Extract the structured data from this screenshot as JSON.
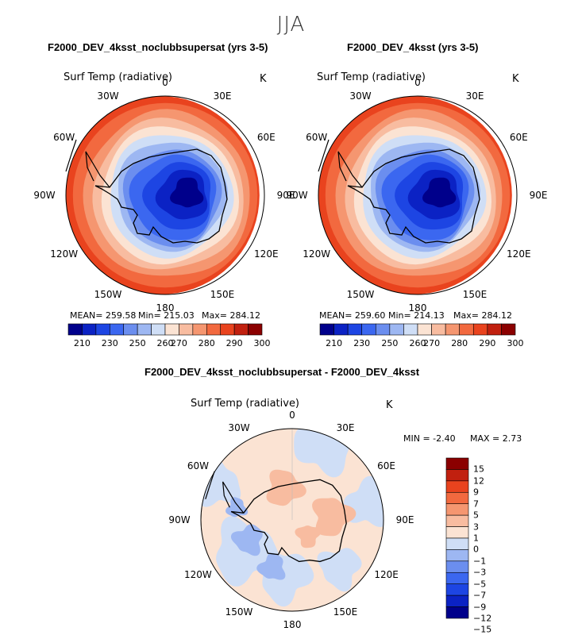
{
  "header": {
    "season": "JJA"
  },
  "colors": {
    "bar": [
      "#00008b",
      "#0b22c4",
      "#1d45e3",
      "#3b67f0",
      "#6b8eef",
      "#9db7f2",
      "#cfdef6",
      "#fbe3d3",
      "#f8bca0",
      "#f59670",
      "#f2693f",
      "#e9431e",
      "#c1200f",
      "#8b0000"
    ],
    "diff": [
      "#00008b",
      "#0b22c4",
      "#1d45e3",
      "#3b67f0",
      "#6b8eef",
      "#9db7f2",
      "#cfdef6",
      "#fbe3d3",
      "#f8bca0",
      "#f59670",
      "#f2693f",
      "#e9431e",
      "#c1200f",
      "#8b0000"
    ],
    "coast": "#000000"
  },
  "panels": [
    {
      "title": "F2000_DEV_4ksst_noclubbsupersat (yrs 3-5)",
      "variable": "Surf Temp (radiative)",
      "units": "K",
      "stats": {
        "mean": "MEAN= 259.58",
        "min": "Min= 215.03",
        "max": "Max= 284.12"
      }
    },
    {
      "title": "F2000_DEV_4ksst (yrs 3-5)",
      "variable": "Surf Temp (radiative)",
      "units": "K",
      "stats": {
        "mean": "MEAN= 259.60",
        "min": "Min= 214.13",
        "max": "Max= 284.12"
      }
    },
    {
      "title": "F2000_DEV_4ksst_noclubbsupersat - F2000_DEV_4ksst",
      "variable": "Surf Temp (radiative)",
      "units": "K",
      "stats": {
        "min": "MIN =  -2.40",
        "max": "MAX =   2.73"
      }
    }
  ],
  "lon_labels": [
    "0",
    "30E",
    "60E",
    "90E",
    "120E",
    "150E",
    "180",
    "150W",
    "120W",
    "90W",
    "60W",
    "30W"
  ],
  "chart_data": [
    {
      "type": "heatmap",
      "title": "F2000_DEV_4ksst_noclubbsupersat (yrs 3-5)",
      "projection": "south-polar stereographic",
      "variable": "Surf Temp (radiative)",
      "units": "K",
      "mean": 259.58,
      "min": 215.03,
      "max": 284.12,
      "levels": [
        205,
        210,
        220,
        230,
        240,
        250,
        255,
        260,
        265,
        270,
        275,
        280,
        285,
        290,
        300
      ],
      "tick_labels": [
        "210",
        "230",
        "250",
        "260",
        "270",
        "280",
        "290",
        "300"
      ],
      "pattern": "coldest (~215 K) over East Antarctic plateau, warming to ~284 K at the northern edge"
    },
    {
      "type": "heatmap",
      "title": "F2000_DEV_4ksst (yrs 3-5)",
      "projection": "south-polar stereographic",
      "variable": "Surf Temp (radiative)",
      "units": "K",
      "mean": 259.6,
      "min": 214.13,
      "max": 284.12,
      "levels": [
        205,
        210,
        220,
        230,
        240,
        250,
        255,
        260,
        265,
        270,
        275,
        280,
        285,
        290,
        300
      ],
      "tick_labels": [
        "210",
        "230",
        "250",
        "260",
        "270",
        "280",
        "290",
        "300"
      ],
      "pattern": "coldest (~214 K) over East Antarctic plateau, warming to ~284 K at the northern edge"
    },
    {
      "type": "heatmap",
      "title": "F2000_DEV_4ksst_noclubbsupersat - F2000_DEV_4ksst",
      "projection": "south-polar stereographic",
      "variable": "Surf Temp (radiative)",
      "units": "K",
      "min": -2.4,
      "max": 2.73,
      "levels": [
        15,
        12,
        9,
        7,
        5,
        3,
        1,
        0,
        -1,
        -3,
        -5,
        -7,
        -9,
        -12,
        -15
      ],
      "tick_labels": [
        "15",
        "12",
        "9",
        "7",
        "5",
        "3",
        "1",
        "0",
        "−1",
        "−3",
        "−5",
        "−7",
        "−9",
        "−12",
        "−15"
      ],
      "pattern": "mostly weak differences (-1 to 1 K); positive over East Antarctica and Weddell region, negative over West Antarctica and Ross/Amundsen seas"
    }
  ]
}
